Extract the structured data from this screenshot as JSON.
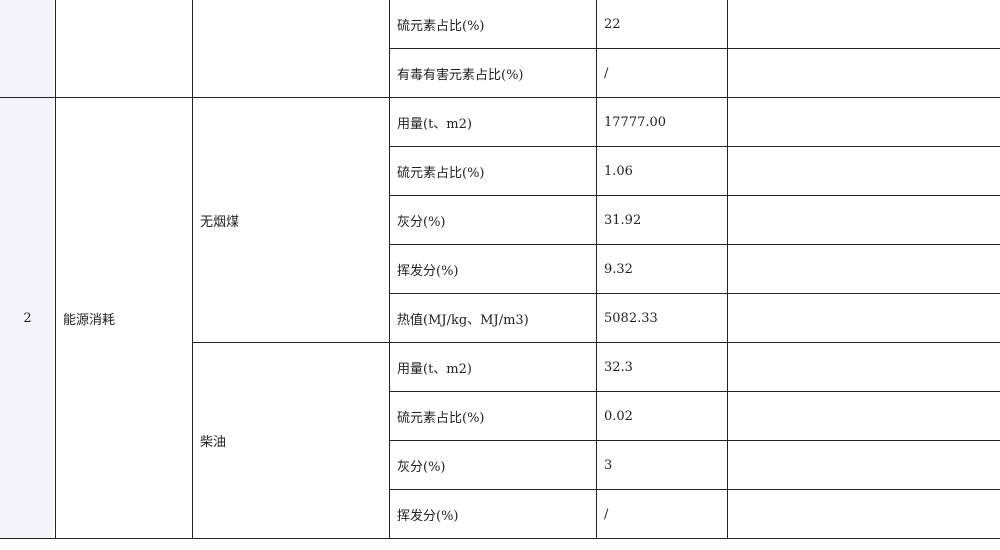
{
  "table": {
    "group1": {
      "rows": [
        {
          "item": "硫元素占比(%)",
          "value": "22",
          "note": ""
        },
        {
          "item": "有毒有害元素占比(%)",
          "value": "/",
          "note": ""
        }
      ]
    },
    "group2": {
      "index": "2",
      "category": "能源消耗",
      "materials": [
        {
          "name": "无烟煤",
          "rows": [
            {
              "item": "用量(t、m2)",
              "value": "17777.00",
              "note": ""
            },
            {
              "item": "硫元素占比(%)",
              "value": "1.06",
              "note": ""
            },
            {
              "item": "灰分(%)",
              "value": "31.92",
              "note": ""
            },
            {
              "item": "挥发分(%)",
              "value": "9.32",
              "note": ""
            },
            {
              "item": "热值(MJ/kg、MJ/m3)",
              "value": "5082.33",
              "note": ""
            }
          ]
        },
        {
          "name": "柴油",
          "rows": [
            {
              "item": "用量(t、m2)",
              "value": "32.3",
              "note": ""
            },
            {
              "item": "硫元素占比(%)",
              "value": "0.02",
              "note": ""
            },
            {
              "item": "灰分(%)",
              "value": "3",
              "note": ""
            },
            {
              "item": "挥发分(%)",
              "value": "/",
              "note": ""
            }
          ]
        }
      ]
    }
  }
}
